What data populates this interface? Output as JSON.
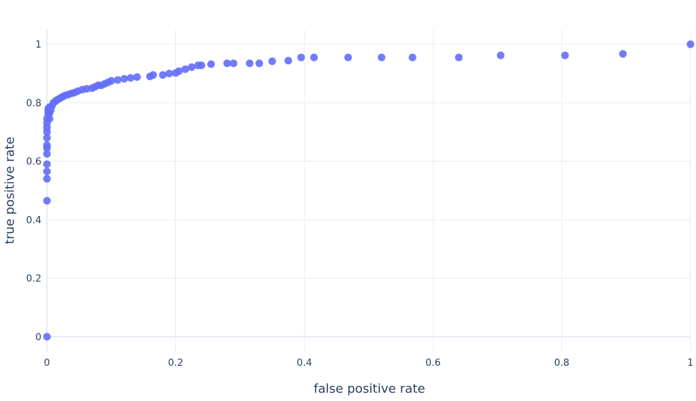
{
  "colors": {
    "background": "#ffffff",
    "grid": "#e5ecf6",
    "zeroline": "#e5ecf6",
    "marker": "#636efa",
    "text": "#2a3f5f"
  },
  "chart_data": {
    "type": "scatter",
    "title": "",
    "xlabel": "false positive rate",
    "ylabel": "true positive rate",
    "xlim": [
      0,
      1
    ],
    "ylim": [
      -0.05,
      1.05
    ],
    "grid": true,
    "legend": "none",
    "x_ticks": [
      {
        "value": 0,
        "label": "0"
      },
      {
        "value": 0.2,
        "label": "0.2"
      },
      {
        "value": 0.4,
        "label": "0.4"
      },
      {
        "value": 0.6,
        "label": "0.6"
      },
      {
        "value": 0.8,
        "label": "0.8"
      },
      {
        "value": 1,
        "label": "1"
      }
    ],
    "y_ticks": [
      {
        "value": 0,
        "label": "0"
      },
      {
        "value": 0.2,
        "label": "0.2"
      },
      {
        "value": 0.4,
        "label": "0.4"
      },
      {
        "value": 0.6,
        "label": "0.6"
      },
      {
        "value": 0.8,
        "label": "0.8"
      },
      {
        "value": 1,
        "label": "1"
      }
    ],
    "series": [
      {
        "points": [
          [
            0,
            0
          ],
          [
            0,
            0.465
          ],
          [
            0,
            0.54
          ],
          [
            0,
            0.565
          ],
          [
            0,
            0.59
          ],
          [
            0,
            0.625
          ],
          [
            0,
            0.645
          ],
          [
            0,
            0.655
          ],
          [
            0,
            0.68
          ],
          [
            0,
            0.7
          ],
          [
            0,
            0.715
          ],
          [
            0,
            0.73
          ],
          [
            0,
            0.745
          ],
          [
            0.002,
            0.76
          ],
          [
            0.002,
            0.77
          ],
          [
            0.002,
            0.78
          ],
          [
            0.004,
            0.745
          ],
          [
            0.004,
            0.765
          ],
          [
            0.004,
            0.785
          ],
          [
            0.006,
            0.775
          ],
          [
            0.008,
            0.79
          ],
          [
            0.01,
            0.8
          ],
          [
            0.013,
            0.805
          ],
          [
            0.016,
            0.81
          ],
          [
            0.02,
            0.815
          ],
          [
            0.024,
            0.82
          ],
          [
            0.028,
            0.825
          ],
          [
            0.033,
            0.828
          ],
          [
            0.038,
            0.832
          ],
          [
            0.043,
            0.835
          ],
          [
            0.048,
            0.84
          ],
          [
            0.055,
            0.845
          ],
          [
            0.062,
            0.848
          ],
          [
            0.07,
            0.85
          ],
          [
            0.075,
            0.855
          ],
          [
            0.08,
            0.86
          ],
          [
            0.085,
            0.86
          ],
          [
            0.09,
            0.865
          ],
          [
            0.095,
            0.87
          ],
          [
            0.1,
            0.875
          ],
          [
            0.11,
            0.878
          ],
          [
            0.12,
            0.882
          ],
          [
            0.13,
            0.885
          ],
          [
            0.14,
            0.888
          ],
          [
            0.16,
            0.89
          ],
          [
            0.165,
            0.895
          ],
          [
            0.18,
            0.895
          ],
          [
            0.19,
            0.9
          ],
          [
            0.2,
            0.902
          ],
          [
            0.205,
            0.908
          ],
          [
            0.215,
            0.915
          ],
          [
            0.225,
            0.922
          ],
          [
            0.235,
            0.928
          ],
          [
            0.24,
            0.928
          ],
          [
            0.255,
            0.932
          ],
          [
            0.28,
            0.935
          ],
          [
            0.29,
            0.935
          ],
          [
            0.315,
            0.935
          ],
          [
            0.33,
            0.935
          ],
          [
            0.35,
            0.942
          ],
          [
            0.375,
            0.944
          ],
          [
            0.395,
            0.955
          ],
          [
            0.415,
            0.955
          ],
          [
            0.468,
            0.955
          ],
          [
            0.52,
            0.955
          ],
          [
            0.568,
            0.955
          ],
          [
            0.64,
            0.955
          ],
          [
            0.705,
            0.962
          ],
          [
            0.805,
            0.962
          ],
          [
            0.895,
            0.967
          ],
          [
            1,
            1
          ]
        ]
      }
    ]
  }
}
